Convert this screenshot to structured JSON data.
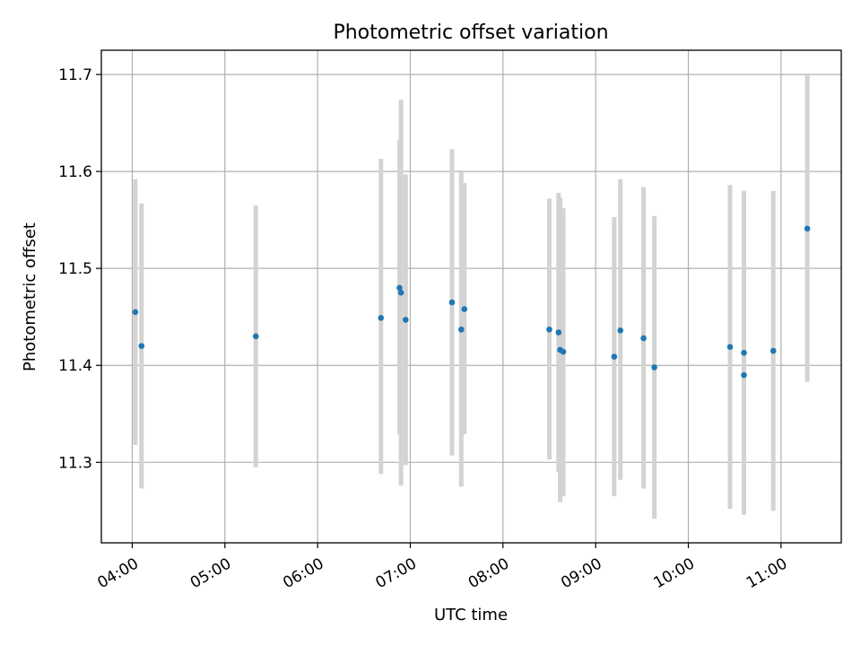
{
  "chart_data": {
    "type": "scatter",
    "title": "Photometric offset variation",
    "xlabel": "UTC time",
    "ylabel": "Photometric offset",
    "x_axis_type": "time",
    "xlim": [
      "03:40",
      "11:39"
    ],
    "ylim": [
      11.217,
      11.725
    ],
    "x_ticks": [
      "04:00",
      "05:00",
      "06:00",
      "07:00",
      "08:00",
      "09:00",
      "10:00",
      "11:00"
    ],
    "y_ticks": [
      11.3,
      11.4,
      11.5,
      11.6,
      11.7
    ],
    "grid": true,
    "legend": "none",
    "colors": {
      "point": "#1f77b4",
      "error_bar": "#d3d3d3",
      "grid": "#b0b0b0"
    },
    "points": [
      {
        "x": "04:02",
        "y": 11.455,
        "ylow": 11.318,
        "yhigh": 11.592
      },
      {
        "x": "04:06",
        "y": 11.42,
        "ylow": 11.273,
        "yhigh": 11.567
      },
      {
        "x": "05:20",
        "y": 11.43,
        "ylow": 11.295,
        "yhigh": 11.565
      },
      {
        "x": "06:41",
        "y": 11.449,
        "ylow": 11.288,
        "yhigh": 11.613
      },
      {
        "x": "06:53",
        "y": 11.48,
        "ylow": 11.329,
        "yhigh": 11.633
      },
      {
        "x": "06:54",
        "y": 11.475,
        "ylow": 11.276,
        "yhigh": 11.674
      },
      {
        "x": "06:57",
        "y": 11.447,
        "ylow": 11.297,
        "yhigh": 11.597
      },
      {
        "x": "07:27",
        "y": 11.465,
        "ylow": 11.307,
        "yhigh": 11.623
      },
      {
        "x": "07:33",
        "y": 11.437,
        "ylow": 11.275,
        "yhigh": 11.599
      },
      {
        "x": "07:35",
        "y": 11.458,
        "ylow": 11.329,
        "yhigh": 11.588
      },
      {
        "x": "08:30",
        "y": 11.437,
        "ylow": 11.303,
        "yhigh": 11.572
      },
      {
        "x": "08:36",
        "y": 11.434,
        "ylow": 11.29,
        "yhigh": 11.578
      },
      {
        "x": "08:37",
        "y": 11.416,
        "ylow": 11.259,
        "yhigh": 11.573
      },
      {
        "x": "08:39",
        "y": 11.414,
        "ylow": 11.265,
        "yhigh": 11.562
      },
      {
        "x": "09:12",
        "y": 11.409,
        "ylow": 11.265,
        "yhigh": 11.553
      },
      {
        "x": "09:16",
        "y": 11.436,
        "ylow": 11.282,
        "yhigh": 11.592
      },
      {
        "x": "09:31",
        "y": 11.428,
        "ylow": 11.273,
        "yhigh": 11.584
      },
      {
        "x": "09:38",
        "y": 11.398,
        "ylow": 11.242,
        "yhigh": 11.554
      },
      {
        "x": "10:27",
        "y": 11.419,
        "ylow": 11.252,
        "yhigh": 11.586
      },
      {
        "x": "10:36",
        "y": 11.413,
        "ylow": 11.246,
        "yhigh": 11.58
      },
      {
        "x": "10:36",
        "y": 11.39,
        "ylow": 11.246,
        "yhigh": 11.58
      },
      {
        "x": "10:55",
        "y": 11.415,
        "ylow": 11.25,
        "yhigh": 11.58
      },
      {
        "x": "11:17",
        "y": 11.541,
        "ylow": 11.383,
        "yhigh": 11.699
      }
    ]
  }
}
